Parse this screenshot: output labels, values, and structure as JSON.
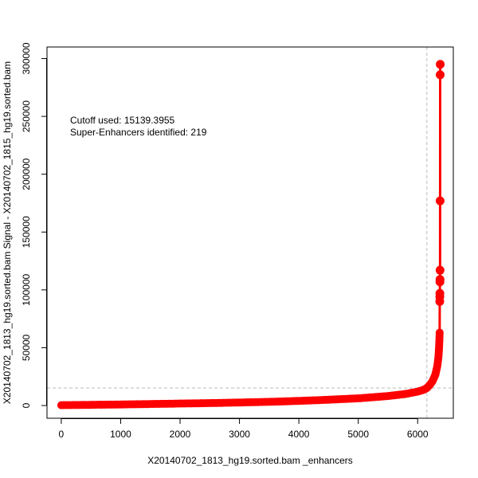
{
  "chart_data": {
    "type": "scatter",
    "title": "",
    "xlabel": "X20140702_1813_hg19.sorted.bam _enhancers",
    "ylabel": "X20140702_1813_hg19.sorted.bam  Signal -  X20140702_1815_hg19.sorted.bam",
    "xlim": [
      -240,
      6600
    ],
    "ylim": [
      -11000,
      310000
    ],
    "xticks": [
      0,
      1000,
      2000,
      3000,
      4000,
      5000,
      6000
    ],
    "yticks": [
      0,
      50000,
      100000,
      150000,
      200000,
      250000,
      300000
    ],
    "grid": false,
    "annotations": [
      {
        "text": "Cutoff used:  15139.3955"
      },
      {
        "text": "Super-Enhancers identified:  219"
      }
    ],
    "cutoff_y": 15139.3955,
    "cutoff_x": 6155,
    "series": [
      {
        "color": "#ff0000",
        "curve_x": [
          0,
          500,
          1000,
          1500,
          2000,
          2500,
          3000,
          3500,
          4000,
          4500,
          5000,
          5500,
          5800,
          6000,
          6100,
          6155,
          6200,
          6250,
          6300,
          6330,
          6350,
          6360,
          6365,
          6370
        ],
        "curve_y": [
          300,
          600,
          900,
          1300,
          1700,
          2100,
          2600,
          3200,
          4000,
          5000,
          6200,
          8200,
          10000,
          12000,
          13600,
          15139,
          17500,
          21000,
          27000,
          34000,
          42000,
          50000,
          56000,
          63000
        ],
        "top_points": [
          {
            "x": 6372,
            "y": 90000
          },
          {
            "x": 6373,
            "y": 94000
          },
          {
            "x": 6374,
            "y": 97000
          },
          {
            "x": 6375,
            "y": 107000
          },
          {
            "x": 6376,
            "y": 109000
          },
          {
            "x": 6377,
            "y": 117000
          },
          {
            "x": 6378,
            "y": 177000
          },
          {
            "x": 6379,
            "y": 286000
          },
          {
            "x": 6380,
            "y": 295000
          }
        ]
      }
    ]
  }
}
